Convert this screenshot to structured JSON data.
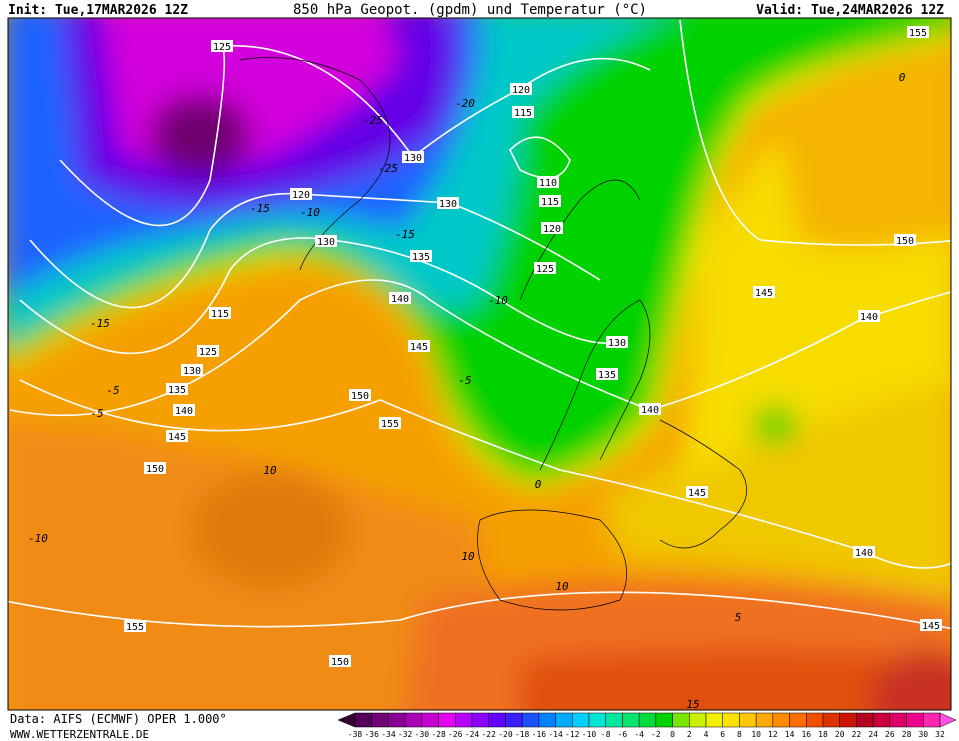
{
  "header": {
    "init": "Init: Tue,17MAR2026 12Z",
    "title": "850 hPa Geopot. (gpdm) und Temperatur (°C)",
    "valid": "Valid: Tue,24MAR2026 12Z"
  },
  "footer": {
    "source": "Data: AIFS (ECMWF) OPER 1.000°",
    "website": "WWW.WETTERZENTRALE.DE"
  },
  "geopotential_labels": [
    125,
    130,
    120,
    130,
    130,
    135,
    120,
    115,
    110,
    115,
    120,
    125,
    140,
    145,
    130,
    135,
    140,
    115,
    125,
    130,
    135,
    140,
    145,
    150,
    150,
    155,
    155,
    150,
    145,
    140,
    145,
    140,
    145,
    155,
    150
  ],
  "temperature_labels": [
    -25,
    -25,
    -15,
    -10,
    -15,
    -20,
    -15,
    -10,
    -5,
    -5,
    -5,
    0,
    10,
    -10,
    10,
    10,
    5,
    15,
    0
  ],
  "colorbar": {
    "ticks": [
      -38,
      -36,
      -34,
      -32,
      -30,
      -28,
      -26,
      -24,
      -22,
      -20,
      -18,
      -16,
      -14,
      -12,
      -10,
      -8,
      -6,
      -4,
      -2,
      0,
      2,
      4,
      6,
      8,
      10,
      12,
      14,
      16,
      18,
      20,
      22,
      24,
      26,
      28,
      30,
      32
    ],
    "colors": [
      "#3a0030",
      "#52005a",
      "#6e0078",
      "#8c0096",
      "#aa00b4",
      "#c800d2",
      "#e600f0",
      "#b400ff",
      "#8c00ff",
      "#6400ff",
      "#3c1eff",
      "#1e50ff",
      "#0082ff",
      "#00aaff",
      "#00d2ff",
      "#00e6d2",
      "#00e6a0",
      "#00e66e",
      "#00dc3c",
      "#00d200",
      "#78e600",
      "#c8f000",
      "#f0f000",
      "#ffe100",
      "#ffc800",
      "#ffaa00",
      "#ff8c00",
      "#ff6e00",
      "#f05000",
      "#dc3200",
      "#c81400",
      "#b4001e",
      "#c8003c",
      "#dc0064",
      "#f0008c",
      "#ff28b4",
      "#ff50e6"
    ]
  }
}
